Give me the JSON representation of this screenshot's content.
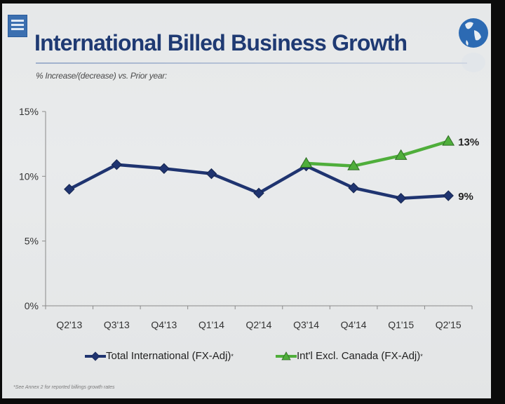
{
  "header": {
    "title": "International Billed Business Growth",
    "subtitle": "% Increase/(decrease) vs. Prior year:"
  },
  "chart_data": {
    "type": "line",
    "categories": [
      "Q2'13",
      "Q3'13",
      "Q4'13",
      "Q1'14",
      "Q2'14",
      "Q3'14",
      "Q4'14",
      "Q1'15",
      "Q2'15"
    ],
    "ylim": [
      0,
      15
    ],
    "yticks": [
      "0%",
      "5%",
      "10%",
      "15%"
    ],
    "ytick_values": [
      0,
      5,
      10,
      15
    ],
    "grid": false,
    "legend_position": "bottom",
    "series": [
      {
        "name": "Total International (FX-Adj)",
        "legend_marker": "*",
        "color": "#1f3470",
        "marker": "diamond",
        "values": [
          9.0,
          10.9,
          10.6,
          10.2,
          8.7,
          10.8,
          9.1,
          8.3,
          8.5
        ],
        "end_label": "9%"
      },
      {
        "name": "Int'l Excl. Canada (FX-Adj)",
        "legend_marker": "*",
        "color": "#4fae3b",
        "marker": "triangle",
        "values": [
          null,
          null,
          null,
          null,
          null,
          11.0,
          10.8,
          11.6,
          12.7
        ],
        "end_label": "13%"
      }
    ]
  },
  "footnote": "*See Annex 2 for reported billings growth rates",
  "colors": {
    "title": "#1f3a73",
    "background": "#e8eaeb"
  }
}
